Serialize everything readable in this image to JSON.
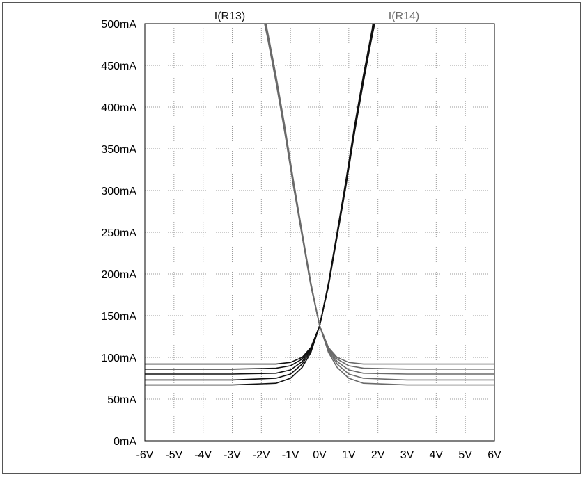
{
  "chart_data": {
    "type": "line",
    "x_ticks": [
      "-6V",
      "-5V",
      "-4V",
      "-3V",
      "-2V",
      "-1V",
      "0V",
      "1V",
      "2V",
      "3V",
      "4V",
      "5V",
      "6V"
    ],
    "y_ticks": [
      "0mA",
      "50mA",
      "100mA",
      "150mA",
      "200mA",
      "250mA",
      "300mA",
      "350mA",
      "400mA",
      "450mA",
      "500mA"
    ],
    "xlim": [
      -6,
      6
    ],
    "ylim": [
      0,
      500
    ],
    "x_unit": "V",
    "y_unit": "mA",
    "grid": true,
    "legend_labels": [
      "I(R13)",
      "I(R14)"
    ],
    "series_colors": [
      "#111111",
      "#6a6a6a"
    ],
    "series": [
      {
        "name": "I(R13)",
        "curves": [
          [
            [
              -6,
              92
            ],
            [
              -3,
              92
            ],
            [
              -1.5,
              92
            ],
            [
              -1,
              94
            ],
            [
              -0.6,
              100
            ],
            [
              -0.3,
              112
            ],
            [
              0,
              138
            ],
            [
              0.3,
              185
            ],
            [
              0.6,
              245
            ],
            [
              0.9,
              305
            ],
            [
              1.2,
              370
            ],
            [
              1.5,
              430
            ],
            [
              1.8,
              485
            ],
            [
              1.95,
              510
            ]
          ],
          [
            [
              -6,
              86
            ],
            [
              -3,
              86
            ],
            [
              -1.5,
              87
            ],
            [
              -1,
              90
            ],
            [
              -0.6,
              98
            ],
            [
              -0.3,
              111
            ],
            [
              0,
              138
            ],
            [
              0.3,
              186
            ],
            [
              0.6,
              246
            ],
            [
              0.9,
              307
            ],
            [
              1.2,
              372
            ],
            [
              1.5,
              432
            ],
            [
              1.8,
              487
            ],
            [
              1.93,
              510
            ]
          ],
          [
            [
              -6,
              80
            ],
            [
              -3,
              80
            ],
            [
              -1.5,
              81
            ],
            [
              -1,
              85
            ],
            [
              -0.6,
              95
            ],
            [
              -0.3,
              110
            ],
            [
              0,
              138
            ],
            [
              0.3,
              187
            ],
            [
              0.6,
              247
            ],
            [
              0.9,
              308
            ],
            [
              1.2,
              374
            ],
            [
              1.5,
              434
            ],
            [
              1.8,
              489
            ],
            [
              1.91,
              510
            ]
          ],
          [
            [
              -6,
              73
            ],
            [
              -3,
              73
            ],
            [
              -1.5,
              75
            ],
            [
              -1,
              80
            ],
            [
              -0.6,
              92
            ],
            [
              -0.3,
              108
            ],
            [
              0,
              138
            ],
            [
              0.3,
              188
            ],
            [
              0.6,
              248
            ],
            [
              0.9,
              310
            ],
            [
              1.2,
              376
            ],
            [
              1.5,
              436
            ],
            [
              1.8,
              491
            ],
            [
              1.89,
              510
            ]
          ],
          [
            [
              -6,
              67
            ],
            [
              -3,
              67
            ],
            [
              -1.5,
              69
            ],
            [
              -1,
              75
            ],
            [
              -0.6,
              88
            ],
            [
              -0.3,
              106
            ],
            [
              0,
              138
            ],
            [
              0.3,
              189
            ],
            [
              0.6,
              250
            ],
            [
              0.9,
              312
            ],
            [
              1.2,
              378
            ],
            [
              1.5,
              438
            ],
            [
              1.8,
              493
            ],
            [
              1.87,
              510
            ]
          ]
        ]
      },
      {
        "name": "I(R14)",
        "curves": [
          [
            [
              6,
              92
            ],
            [
              3,
              92
            ],
            [
              1.5,
              92
            ],
            [
              1,
              94
            ],
            [
              0.6,
              100
            ],
            [
              0.3,
              112
            ],
            [
              0,
              138
            ],
            [
              -0.3,
              185
            ],
            [
              -0.6,
              245
            ],
            [
              -0.9,
              305
            ],
            [
              -1.2,
              370
            ],
            [
              -1.5,
              430
            ],
            [
              -1.8,
              485
            ],
            [
              -1.95,
              510
            ]
          ],
          [
            [
              6,
              86
            ],
            [
              3,
              86
            ],
            [
              1.5,
              87
            ],
            [
              1,
              90
            ],
            [
              0.6,
              98
            ],
            [
              0.3,
              111
            ],
            [
              0,
              138
            ],
            [
              -0.3,
              186
            ],
            [
              -0.6,
              246
            ],
            [
              -0.9,
              307
            ],
            [
              -1.2,
              372
            ],
            [
              -1.5,
              432
            ],
            [
              -1.8,
              487
            ],
            [
              -1.93,
              510
            ]
          ],
          [
            [
              6,
              80
            ],
            [
              3,
              80
            ],
            [
              1.5,
              81
            ],
            [
              1,
              85
            ],
            [
              0.6,
              95
            ],
            [
              0.3,
              110
            ],
            [
              0,
              138
            ],
            [
              -0.3,
              187
            ],
            [
              -0.6,
              247
            ],
            [
              -0.9,
              308
            ],
            [
              -1.2,
              374
            ],
            [
              -1.5,
              434
            ],
            [
              -1.8,
              489
            ],
            [
              -1.91,
              510
            ]
          ],
          [
            [
              6,
              73
            ],
            [
              3,
              73
            ],
            [
              1.5,
              75
            ],
            [
              1,
              80
            ],
            [
              0.6,
              92
            ],
            [
              0.3,
              108
            ],
            [
              0,
              138
            ],
            [
              -0.3,
              188
            ],
            [
              -0.6,
              248
            ],
            [
              -0.9,
              310
            ],
            [
              -1.2,
              376
            ],
            [
              -1.5,
              436
            ],
            [
              -1.8,
              491
            ],
            [
              -1.89,
              510
            ]
          ],
          [
            [
              6,
              67
            ],
            [
              3,
              67
            ],
            [
              1.5,
              69
            ],
            [
              1,
              75
            ],
            [
              0.6,
              88
            ],
            [
              0.3,
              106
            ],
            [
              0,
              138
            ],
            [
              -0.3,
              189
            ],
            [
              -0.6,
              250
            ],
            [
              -0.9,
              312
            ],
            [
              -1.2,
              378
            ],
            [
              -1.5,
              438
            ],
            [
              -1.8,
              493
            ],
            [
              -1.87,
              510
            ]
          ]
        ]
      }
    ]
  }
}
